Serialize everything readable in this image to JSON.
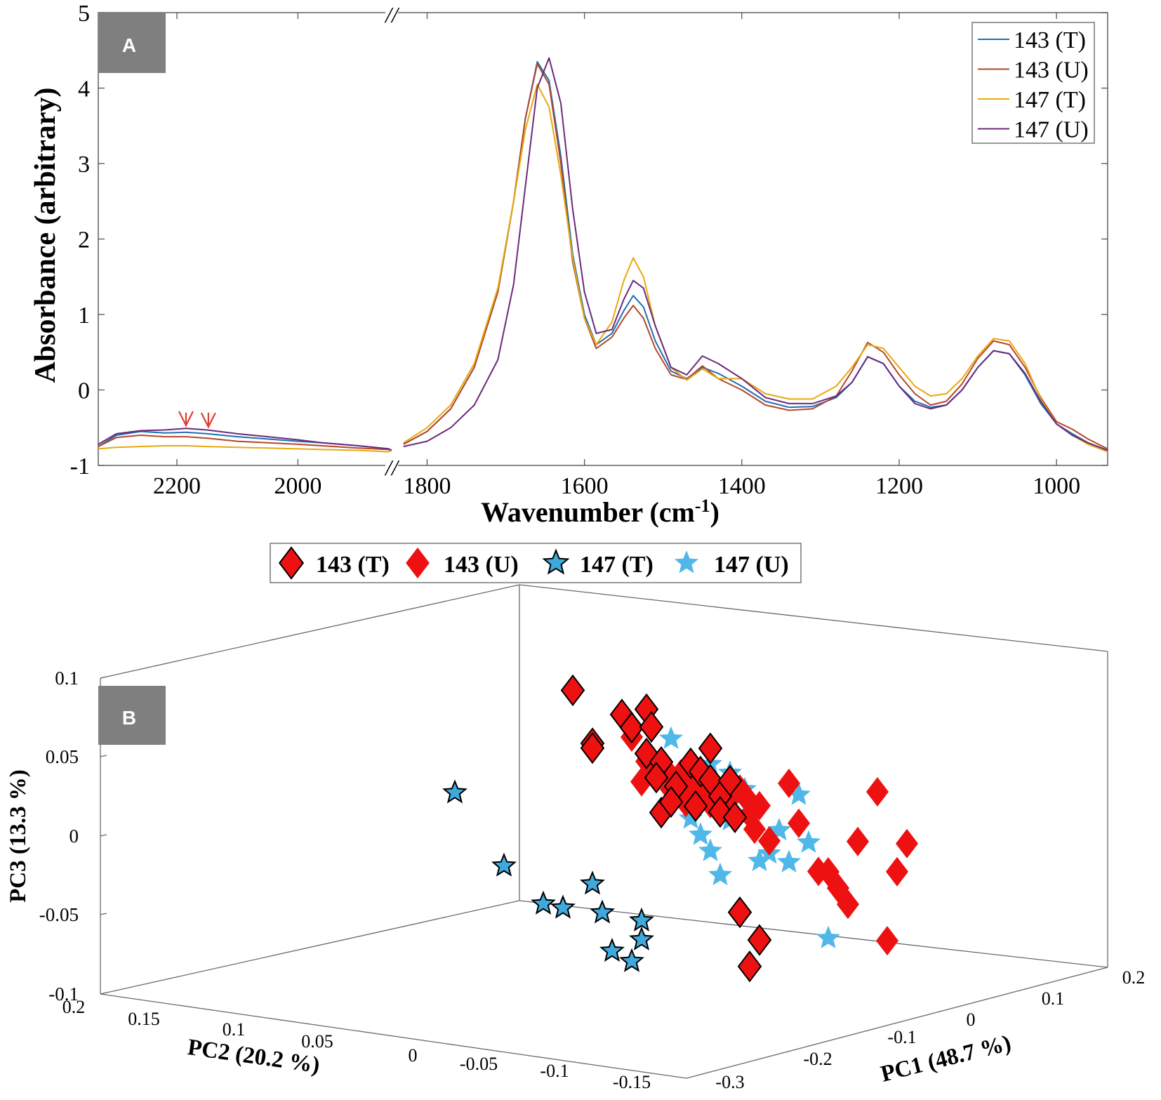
{
  "chart_data": [
    {
      "panel": "A",
      "type": "line",
      "xlabel_main": "Wavenumber (cm",
      "xlabel_sup": "-1",
      "xlabel_close": ")",
      "ylabel": "Absorbance (arbitrary)",
      "axis_break": "//",
      "x_segments": [
        [
          2330,
          1845
        ],
        [
          1845,
          935
        ]
      ],
      "xlim_descending": true,
      "ylim": [
        -1,
        5
      ],
      "x_ticks": [
        2200,
        2000,
        1800,
        1600,
        1400,
        1200,
        1000
      ],
      "x_tick_labels": [
        "2200",
        "2000",
        "1800",
        "1600",
        "1400",
        "1200",
        "1000"
      ],
      "y_ticks": [
        -1,
        0,
        1,
        2,
        3,
        4,
        5
      ],
      "y_tick_labels": [
        "-1",
        "0",
        "1",
        "2",
        "3",
        "4",
        "5"
      ],
      "legend_position": "top-right",
      "annotations": [
        {
          "type": "arrow",
          "color": "#e03c31",
          "x": 2185,
          "y_from": -0.3,
          "y_to": -0.47
        },
        {
          "type": "arrow",
          "color": "#e03c31",
          "x": 2148,
          "y_from": -0.3,
          "y_to": -0.49
        }
      ],
      "series": [
        {
          "name": "143 (T)",
          "color": "#1f6fb2",
          "x": [
            2330,
            2300,
            2260,
            2220,
            2185,
            2150,
            2100,
            2050,
            2000,
            1960,
            1900,
            1850,
            1845,
            1830,
            1800,
            1770,
            1740,
            1710,
            1690,
            1675,
            1660,
            1645,
            1630,
            1615,
            1600,
            1585,
            1565,
            1550,
            1538,
            1525,
            1510,
            1490,
            1470,
            1450,
            1430,
            1400,
            1370,
            1340,
            1310,
            1280,
            1260,
            1240,
            1220,
            1200,
            1180,
            1160,
            1140,
            1120,
            1100,
            1080,
            1060,
            1040,
            1020,
            1000,
            980,
            960,
            935
          ],
          "y": [
            -0.75,
            -0.6,
            -0.55,
            -0.57,
            -0.56,
            -0.58,
            -0.62,
            -0.65,
            -0.68,
            -0.7,
            -0.74,
            -0.78,
            -0.8,
            -0.72,
            -0.55,
            -0.25,
            0.3,
            1.3,
            2.5,
            3.6,
            4.35,
            4.1,
            3.1,
            1.8,
            1.0,
            0.6,
            0.75,
            1.05,
            1.25,
            1.1,
            0.65,
            0.25,
            0.15,
            0.3,
            0.22,
            0.05,
            -0.15,
            -0.23,
            -0.22,
            -0.1,
            0.1,
            0.44,
            0.35,
            0.05,
            -0.15,
            -0.23,
            -0.2,
            0.0,
            0.3,
            0.52,
            0.48,
            0.2,
            -0.18,
            -0.45,
            -0.58,
            -0.7,
            -0.8
          ]
        },
        {
          "name": "143 (U)",
          "color": "#b5482a",
          "x": [
            2330,
            2300,
            2260,
            2220,
            2185,
            2150,
            2100,
            2050,
            2000,
            1960,
            1900,
            1850,
            1845,
            1830,
            1800,
            1770,
            1740,
            1710,
            1690,
            1675,
            1660,
            1645,
            1630,
            1615,
            1600,
            1585,
            1565,
            1550,
            1538,
            1525,
            1510,
            1490,
            1470,
            1450,
            1430,
            1400,
            1370,
            1340,
            1310,
            1280,
            1260,
            1240,
            1220,
            1200,
            1180,
            1160,
            1140,
            1120,
            1100,
            1080,
            1060,
            1040,
            1020,
            1000,
            980,
            960,
            935
          ],
          "y": [
            -0.75,
            -0.63,
            -0.6,
            -0.62,
            -0.62,
            -0.64,
            -0.68,
            -0.7,
            -0.72,
            -0.74,
            -0.77,
            -0.79,
            -0.8,
            -0.72,
            -0.55,
            -0.25,
            0.3,
            1.3,
            2.5,
            3.6,
            4.32,
            4.05,
            3.0,
            1.7,
            0.95,
            0.55,
            0.7,
            0.95,
            1.12,
            0.95,
            0.55,
            0.2,
            0.14,
            0.32,
            0.15,
            0.0,
            -0.2,
            -0.27,
            -0.25,
            -0.08,
            0.25,
            0.63,
            0.5,
            0.2,
            -0.05,
            -0.2,
            -0.15,
            0.08,
            0.42,
            0.65,
            0.6,
            0.3,
            -0.1,
            -0.42,
            -0.52,
            -0.65,
            -0.78
          ]
        },
        {
          "name": "147 (T)",
          "color": "#e8a90e",
          "x": [
            2330,
            2300,
            2260,
            2220,
            2185,
            2150,
            2100,
            2050,
            2000,
            1960,
            1900,
            1850,
            1845,
            1830,
            1800,
            1770,
            1740,
            1710,
            1690,
            1675,
            1660,
            1645,
            1630,
            1615,
            1600,
            1585,
            1565,
            1550,
            1538,
            1525,
            1510,
            1490,
            1470,
            1450,
            1430,
            1400,
            1370,
            1340,
            1310,
            1280,
            1260,
            1240,
            1220,
            1200,
            1180,
            1160,
            1140,
            1120,
            1100,
            1080,
            1060,
            1040,
            1020,
            1000,
            980,
            960,
            935
          ],
          "y": [
            -0.78,
            -0.76,
            -0.75,
            -0.74,
            -0.74,
            -0.75,
            -0.76,
            -0.77,
            -0.78,
            -0.79,
            -0.8,
            -0.82,
            -0.8,
            -0.7,
            -0.5,
            -0.2,
            0.35,
            1.35,
            2.5,
            3.45,
            4.05,
            3.75,
            2.85,
            1.75,
            0.95,
            0.6,
            0.9,
            1.45,
            1.75,
            1.5,
            0.85,
            0.3,
            0.13,
            0.28,
            0.15,
            0.15,
            -0.05,
            -0.12,
            -0.12,
            0.05,
            0.3,
            0.6,
            0.55,
            0.3,
            0.05,
            -0.08,
            -0.05,
            0.15,
            0.45,
            0.68,
            0.65,
            0.35,
            -0.12,
            -0.45,
            -0.6,
            -0.72,
            -0.82
          ]
        },
        {
          "name": "147 (U)",
          "color": "#6b2a7a",
          "x": [
            2330,
            2300,
            2260,
            2220,
            2185,
            2150,
            2100,
            2050,
            2000,
            1960,
            1900,
            1850,
            1845,
            1830,
            1800,
            1770,
            1740,
            1710,
            1690,
            1675,
            1660,
            1645,
            1630,
            1615,
            1600,
            1585,
            1565,
            1550,
            1538,
            1525,
            1510,
            1490,
            1470,
            1450,
            1430,
            1400,
            1370,
            1340,
            1310,
            1280,
            1260,
            1240,
            1220,
            1200,
            1180,
            1160,
            1140,
            1120,
            1100,
            1080,
            1060,
            1040,
            1020,
            1000,
            980,
            960,
            935
          ],
          "y": [
            -0.72,
            -0.58,
            -0.54,
            -0.53,
            -0.51,
            -0.53,
            -0.58,
            -0.62,
            -0.66,
            -0.7,
            -0.74,
            -0.78,
            -0.8,
            -0.75,
            -0.68,
            -0.5,
            -0.2,
            0.4,
            1.4,
            2.7,
            4.0,
            4.4,
            3.8,
            2.4,
            1.3,
            0.75,
            0.8,
            1.2,
            1.45,
            1.35,
            0.85,
            0.3,
            0.2,
            0.45,
            0.35,
            0.15,
            -0.1,
            -0.18,
            -0.18,
            -0.08,
            0.1,
            0.44,
            0.35,
            0.05,
            -0.18,
            -0.25,
            -0.2,
            0.0,
            0.3,
            0.52,
            0.48,
            0.22,
            -0.15,
            -0.45,
            -0.6,
            -0.7,
            -0.8
          ]
        }
      ]
    },
    {
      "panel": "B",
      "type": "scatter",
      "dimensions": 3,
      "xlabel": "PC1 (48.7 %)",
      "ylabel": "PC2 (20.2 %)",
      "zlabel": "PC3 (13.3 %)",
      "xlim": [
        -0.3,
        0.2
      ],
      "ylim": [
        -0.15,
        0.2
      ],
      "zlim": [
        -0.1,
        0.1
      ],
      "x_tick_labels": [
        "-0.3",
        "-0.2",
        "-0.1",
        "0",
        "0.1",
        "0.2"
      ],
      "y_tick_labels": [
        "0.2",
        "0.15",
        "0.1",
        "0.05",
        "0",
        "-0.05",
        "-0.1",
        "-0.15"
      ],
      "z_tick_labels": [
        "0.1",
        "0.05",
        "0",
        "-0.05",
        "-0.1"
      ],
      "legend_position": "top-center",
      "legend": [
        {
          "name": "143 (T)",
          "marker": "diamond",
          "fill": "#ee1111",
          "edge": "#000000"
        },
        {
          "name": "143 (U)",
          "marker": "diamond",
          "fill": "#ee1111",
          "edge": "none"
        },
        {
          "name": "147 (T)",
          "marker": "star",
          "fill": "#3fa9dc",
          "edge": "#000000"
        },
        {
          "name": "147 (U)",
          "marker": "star",
          "fill": "#4fb8e8",
          "edge": "none"
        }
      ],
      "projected_points": {
        "143 (T)": [
          [
            -0.16,
            0.088
          ],
          [
            -0.14,
            0.055
          ],
          [
            -0.14,
            0.052
          ],
          [
            -0.11,
            0.074
          ],
          [
            -0.1,
            0.066
          ],
          [
            -0.085,
            0.078
          ],
          [
            -0.08,
            0.067
          ],
          [
            -0.085,
            0.05
          ],
          [
            -0.07,
            0.045
          ],
          [
            -0.075,
            0.035
          ],
          [
            -0.055,
            0.03
          ],
          [
            -0.04,
            0.045
          ],
          [
            -0.03,
            0.04
          ],
          [
            -0.02,
            0.055
          ],
          [
            -0.02,
            0.035
          ],
          [
            -0.01,
            0.025
          ],
          [
            0.0,
            0.035
          ],
          [
            -0.01,
            0.015
          ],
          [
            0.005,
            0.012
          ],
          [
            -0.07,
            0.013
          ],
          [
            -0.06,
            0.02
          ],
          [
            0.01,
            -0.048
          ],
          [
            0.03,
            -0.065
          ],
          [
            0.02,
            -0.082
          ],
          [
            -0.035,
            0.018
          ]
        ],
        "143 (U)": [
          [
            -0.1,
            0.06
          ],
          [
            -0.085,
            0.045
          ],
          [
            -0.065,
            0.04
          ],
          [
            -0.05,
            0.038
          ],
          [
            -0.04,
            0.03
          ],
          [
            -0.03,
            0.028
          ],
          [
            -0.02,
            0.02
          ],
          [
            0.0,
            0.024
          ],
          [
            0.01,
            0.03
          ],
          [
            0.02,
            0.022
          ],
          [
            0.02,
            0.014
          ],
          [
            0.03,
            0.02
          ],
          [
            0.025,
            0.005
          ],
          [
            0.04,
            -0.002
          ],
          [
            0.06,
            0.035
          ],
          [
            0.07,
            0.01
          ],
          [
            0.09,
            -0.02
          ],
          [
            0.1,
            -0.02
          ],
          [
            0.11,
            -0.03
          ],
          [
            0.12,
            -0.04
          ],
          [
            0.13,
            0.0
          ],
          [
            0.15,
            0.032
          ],
          [
            0.17,
            -0.018
          ],
          [
            0.18,
            0.0
          ],
          [
            0.16,
            -0.062
          ],
          [
            -0.09,
            0.032
          ],
          [
            -0.06,
            0.028
          ],
          [
            -0.045,
            0.02
          ]
        ],
        "147 (T)": [
          [
            -0.28,
            0.02
          ],
          [
            -0.23,
            -0.025
          ],
          [
            -0.19,
            -0.048
          ],
          [
            -0.17,
            -0.05
          ],
          [
            -0.14,
            -0.034
          ],
          [
            -0.13,
            -0.052
          ],
          [
            -0.09,
            -0.056
          ],
          [
            -0.09,
            -0.068
          ],
          [
            -0.12,
            -0.076
          ],
          [
            -0.1,
            -0.082
          ]
        ],
        "147 (U)": [
          [
            -0.02,
            0.045
          ],
          [
            0.0,
            0.04
          ],
          [
            0.01,
            0.025
          ],
          [
            0.02,
            0.015
          ],
          [
            -0.02,
            -0.01
          ],
          [
            -0.01,
            -0.025
          ],
          [
            0.03,
            -0.015
          ],
          [
            0.04,
            -0.01
          ],
          [
            -0.04,
            0.01
          ],
          [
            -0.03,
            0.0
          ],
          [
            0.05,
            0.005
          ],
          [
            0.06,
            -0.015
          ],
          [
            0.07,
            0.028
          ],
          [
            0.08,
            -0.002
          ],
          [
            0.1,
            -0.062
          ],
          [
            0.015,
            0.03
          ],
          [
            -0.06,
            0.06
          ],
          [
            0.0,
            0.01
          ]
        ]
      }
    }
  ],
  "panel_a_label": "A",
  "panel_b_label": "B"
}
